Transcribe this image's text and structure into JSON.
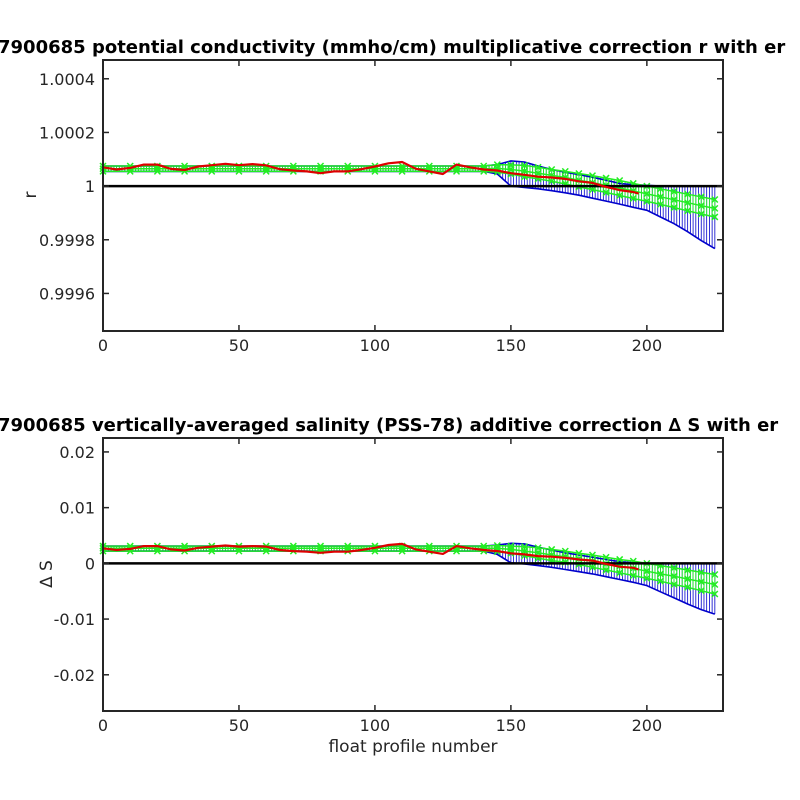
{
  "chart_data": [
    {
      "type": "line",
      "title": "7900685 potential conductivity (mmho/cm) multiplicative correction r with er",
      "ylabel": "r",
      "xlabel": "",
      "xlim": [
        0,
        228
      ],
      "ylim": [
        0.99946,
        1.00047
      ],
      "xticks": [
        0,
        50,
        100,
        150,
        200
      ],
      "xtick_labels": [
        "0",
        "50",
        "100",
        "150",
        "200"
      ],
      "yticks": [
        0.9996,
        0.9998,
        1,
        1.0002,
        1.0004
      ],
      "ytick_labels": [
        "0.9996",
        "0.9998",
        "1",
        "1.0002",
        "1.0004"
      ],
      "reference_line": 1,
      "grid": false,
      "series": [
        {
          "role": "fit_with_error_bars",
          "color": "#22ee22",
          "x": [
            0,
            10,
            20,
            30,
            40,
            50,
            60,
            70,
            80,
            90,
            100,
            110,
            120,
            130,
            140,
            145,
            150,
            155,
            160,
            165,
            170,
            175,
            180,
            185,
            190,
            195,
            200,
            205,
            210,
            215,
            220,
            225
          ],
          "y": [
            1.000065,
            1.000065,
            1.000065,
            1.000065,
            1.000065,
            1.000065,
            1.000065,
            1.000065,
            1.000065,
            1.000065,
            1.000065,
            1.000065,
            1.000065,
            1.000065,
            1.000065,
            1.000066,
            1.000062,
            1.000056,
            1.000048,
            1.00004,
            1.000032,
            1.000022,
            1.000013,
            1.000003,
            0.999993,
            0.999982,
            0.999971,
            0.99996,
            0.999949,
            0.999938,
            0.999927,
            0.999917
          ],
          "err_lo": [
            1.000055,
            1.000055,
            1.000055,
            1.000055,
            1.000055,
            1.000055,
            1.000055,
            1.000055,
            1.000055,
            1.000055,
            1.000055,
            1.000055,
            1.000055,
            1.000055,
            1.000055,
            1.000052,
            1.000045,
            1.000035,
            1.000027,
            1.000018,
            1.000008,
            0.999997,
            0.999987,
            0.999976,
            0.999965,
            0.999954,
            0.999943,
            0.999932,
            0.99992,
            0.999908,
            0.999896,
            0.999885
          ],
          "err_hi": [
            1.000075,
            1.000075,
            1.000075,
            1.000075,
            1.000075,
            1.000075,
            1.000075,
            1.000075,
            1.000075,
            1.000075,
            1.000075,
            1.000075,
            1.000075,
            1.000075,
            1.000075,
            1.00008,
            1.000079,
            1.000077,
            1.00007,
            1.000062,
            1.000055,
            1.000047,
            1.000039,
            1.00003,
            1.000021,
            1.00001,
            1.0,
            0.99999,
            0.99998,
            0.99997,
            0.99996,
            0.99995
          ]
        },
        {
          "role": "error_envelope",
          "color": "#0000cc",
          "x": [
            0,
            10,
            20,
            30,
            40,
            50,
            60,
            70,
            80,
            90,
            100,
            110,
            120,
            130,
            140,
            145,
            150,
            155,
            160,
            165,
            170,
            175,
            180,
            185,
            190,
            195,
            200,
            205,
            210,
            215,
            220,
            225
          ],
          "err_lo": [
            1.000055,
            1.000055,
            1.000055,
            1.000055,
            1.000055,
            1.000055,
            1.000055,
            1.000055,
            1.000055,
            1.000055,
            1.000055,
            1.000055,
            1.000055,
            1.000055,
            1.000055,
            1.000045,
            1.0,
            0.999995,
            0.99999,
            0.999983,
            0.999975,
            0.999966,
            0.999955,
            0.999944,
            0.999933,
            0.999921,
            0.99991,
            0.999885,
            0.99986,
            0.99983,
            0.999797,
            0.999767
          ],
          "err_hi": [
            1.000075,
            1.000075,
            1.000075,
            1.000075,
            1.000075,
            1.000075,
            1.000075,
            1.000075,
            1.000075,
            1.000075,
            1.000075,
            1.000075,
            1.000075,
            1.000075,
            1.000075,
            1.00008,
            1.000094,
            1.00009,
            1.000075,
            1.000062,
            1.000052,
            1.000043,
            1.000033,
            1.000022,
            1.00001,
            1.000005,
            1.000003,
            1.0,
            1.0,
            1.0,
            1.0,
            1.0
          ]
        },
        {
          "role": "profile_ratio",
          "color": "#dd0000",
          "x": [
            0,
            5,
            10,
            15,
            20,
            25,
            30,
            35,
            40,
            45,
            50,
            55,
            60,
            65,
            70,
            75,
            80,
            85,
            90,
            95,
            100,
            105,
            110,
            115,
            120,
            125,
            130,
            135,
            140,
            145,
            150,
            155,
            160,
            165,
            170,
            175,
            180,
            185,
            190,
            195,
            197
          ],
          "y": [
            1.00007,
            1.000062,
            1.000068,
            1.00008,
            1.00008,
            1.000064,
            1.00006,
            1.000073,
            1.000078,
            1.000083,
            1.000078,
            1.000082,
            1.000077,
            1.000063,
            1.000058,
            1.000055,
            1.000048,
            1.000055,
            1.000055,
            1.000063,
            1.000073,
            1.000085,
            1.00009,
            1.000065,
            1.000055,
            1.000045,
            1.00008,
            1.00007,
            1.000062,
            1.000058,
            1.000048,
            1.000042,
            1.000035,
            1.000032,
            1.000027,
            1.000018,
            1.000012,
            0.999997,
            0.999985,
            0.999978,
            0.999972
          ]
        }
      ]
    },
    {
      "type": "line",
      "title": "7900685 vertically-averaged salinity (PSS-78) additive correction ∆ S with er",
      "ylabel": "∆ S",
      "xlabel": "float profile number",
      "xlim": [
        0,
        228
      ],
      "ylim": [
        -0.0265,
        0.0225
      ],
      "xticks": [
        0,
        50,
        100,
        150,
        200
      ],
      "xtick_labels": [
        "0",
        "50",
        "100",
        "150",
        "200"
      ],
      "yticks": [
        -0.02,
        -0.01,
        0,
        0.01,
        0.02
      ],
      "ytick_labels": [
        "-0.02",
        "-0.01",
        "0",
        "0.01",
        "0.02"
      ],
      "reference_line": 0,
      "grid": false,
      "series": [
        {
          "role": "fit_with_error_bars",
          "color": "#22ee22",
          "x": [
            0,
            10,
            20,
            30,
            40,
            50,
            60,
            70,
            80,
            90,
            100,
            110,
            120,
            130,
            140,
            145,
            150,
            155,
            160,
            165,
            170,
            175,
            180,
            185,
            190,
            195,
            200,
            205,
            210,
            215,
            220,
            225
          ],
          "y": [
            0.0027,
            0.0027,
            0.0027,
            0.0027,
            0.0027,
            0.0027,
            0.0027,
            0.0027,
            0.0027,
            0.0027,
            0.0027,
            0.0027,
            0.0027,
            0.0027,
            0.0027,
            0.0027,
            0.0025,
            0.0022,
            0.0019,
            0.0015,
            0.0012,
            0.0008,
            0.0004,
            -0.0001,
            -0.0005,
            -0.0009,
            -0.0014,
            -0.0019,
            -0.0023,
            -0.0028,
            -0.0033,
            -0.0038
          ],
          "err_lo": [
            0.0022,
            0.0022,
            0.0022,
            0.0022,
            0.0022,
            0.0022,
            0.0022,
            0.0022,
            0.0022,
            0.0022,
            0.0022,
            0.0022,
            0.0022,
            0.0022,
            0.0022,
            0.0021,
            0.0018,
            0.0014,
            0.0009,
            0.0005,
            0.0002,
            -0.0002,
            -0.0007,
            -0.0012,
            -0.0017,
            -0.0022,
            -0.0027,
            -0.0032,
            -0.0038,
            -0.0043,
            -0.0049,
            -0.0055
          ],
          "err_hi": [
            0.0031,
            0.0031,
            0.0031,
            0.0031,
            0.0031,
            0.0031,
            0.0031,
            0.0031,
            0.0031,
            0.0031,
            0.0031,
            0.0031,
            0.0031,
            0.0031,
            0.0031,
            0.0032,
            0.0031,
            0.003,
            0.0028,
            0.0025,
            0.0022,
            0.0018,
            0.0015,
            0.0011,
            0.0007,
            0.0004,
            0.0,
            -0.0004,
            -0.0008,
            -0.0012,
            -0.0016,
            -0.002
          ]
        },
        {
          "role": "error_envelope",
          "color": "#0000cc",
          "x": [
            0,
            10,
            20,
            30,
            40,
            50,
            60,
            70,
            80,
            90,
            100,
            110,
            120,
            130,
            140,
            145,
            150,
            155,
            160,
            165,
            170,
            175,
            180,
            185,
            190,
            195,
            200,
            205,
            210,
            215,
            220,
            225
          ],
          "err_lo": [
            0.0022,
            0.0022,
            0.0022,
            0.0022,
            0.0022,
            0.0022,
            0.0022,
            0.0022,
            0.0022,
            0.0022,
            0.0022,
            0.0022,
            0.0022,
            0.0022,
            0.0022,
            0.0016,
            0.0001,
            -0.0001,
            -0.0004,
            -0.0007,
            -0.0011,
            -0.0015,
            -0.0019,
            -0.0024,
            -0.0029,
            -0.0034,
            -0.004,
            -0.0051,
            -0.0062,
            -0.0073,
            -0.0083,
            -0.0091
          ],
          "err_hi": [
            0.0031,
            0.0031,
            0.0031,
            0.0031,
            0.0031,
            0.0031,
            0.0031,
            0.0031,
            0.0031,
            0.0031,
            0.0031,
            0.0031,
            0.0031,
            0.0031,
            0.0031,
            0.0033,
            0.0036,
            0.0035,
            0.0029,
            0.0024,
            0.0019,
            0.0015,
            0.0011,
            0.0007,
            0.0003,
            0.0001,
            0.0,
            0.0,
            0.0,
            0.0,
            0.0,
            0.0
          ]
        },
        {
          "role": "profile_ratio",
          "color": "#dd0000",
          "x": [
            0,
            5,
            10,
            15,
            20,
            25,
            30,
            35,
            40,
            45,
            50,
            55,
            60,
            65,
            70,
            75,
            80,
            85,
            90,
            95,
            100,
            105,
            110,
            115,
            120,
            125,
            130,
            135,
            140,
            145,
            150,
            155,
            160,
            165,
            170,
            175,
            180,
            185,
            190,
            195,
            197
          ],
          "y": [
            0.0027,
            0.0024,
            0.0026,
            0.0031,
            0.0031,
            0.0025,
            0.0023,
            0.0028,
            0.003,
            0.0032,
            0.003,
            0.0031,
            0.003,
            0.0024,
            0.0022,
            0.0021,
            0.0019,
            0.0021,
            0.0021,
            0.0024,
            0.0028,
            0.0033,
            0.0035,
            0.0025,
            0.0021,
            0.0017,
            0.0031,
            0.0027,
            0.0024,
            0.0022,
            0.0018,
            0.0016,
            0.0013,
            0.0012,
            0.001,
            0.0007,
            0.0005,
            -0.0001,
            -0.0006,
            -0.0008,
            -0.0011
          ]
        }
      ]
    }
  ]
}
